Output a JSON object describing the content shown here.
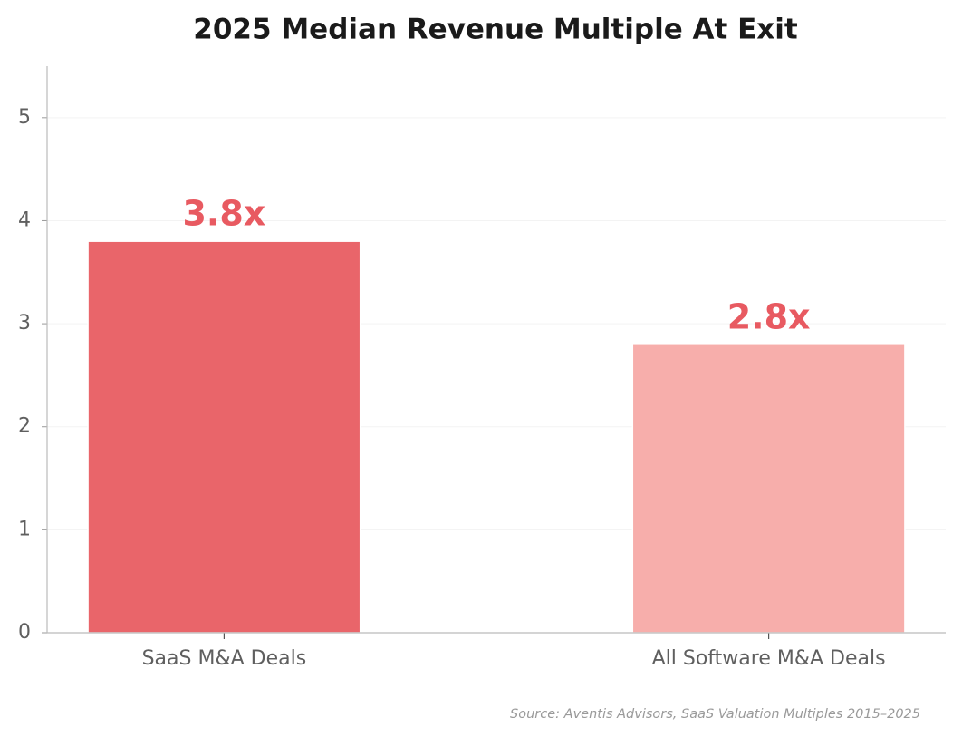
{
  "chart_data": {
    "type": "bar",
    "title": "2025 Median Revenue Multiple At Exit",
    "categories": [
      "SaaS M&A Deals",
      "All Software M&A Deals"
    ],
    "values": [
      3.8,
      2.8
    ],
    "value_labels": [
      "3.8x",
      "2.8x"
    ],
    "colors": [
      "#e9656a",
      "#f7aeab"
    ],
    "label_color": "#e85a61",
    "ylim": [
      0,
      5.5
    ],
    "yticks": [
      0,
      1,
      2,
      3,
      4,
      5
    ],
    "grid": true,
    "source": "Source: Aventis Advisors, SaaS Valuation Multiples 2015–2025"
  }
}
